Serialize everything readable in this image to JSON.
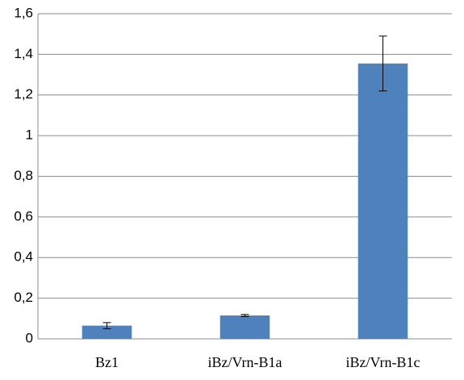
{
  "chart_data": {
    "type": "bar",
    "categories": [
      "Bz1",
      "iBz/Vrn-B1a",
      "iBz/Vrn-B1c"
    ],
    "values": [
      0.065,
      0.115,
      1.355
    ],
    "errors": [
      0.015,
      0.005,
      0.135
    ],
    "color": "#4f81bd",
    "ylim": [
      0,
      1.6
    ],
    "yticks": [
      0,
      {
        "value": 0.2,
        "label": "0,2"
      },
      {
        "value": 0.4,
        "label": "0,4"
      },
      {
        "value": 0.6,
        "label": "0,6"
      },
      {
        "value": 0.8,
        "label": "0,8"
      },
      1,
      {
        "value": 1.2,
        "label": "1,2"
      },
      {
        "value": 1.4,
        "label": "1,4"
      },
      {
        "value": 1.6,
        "label": "1,6"
      }
    ],
    "grid": true
  }
}
